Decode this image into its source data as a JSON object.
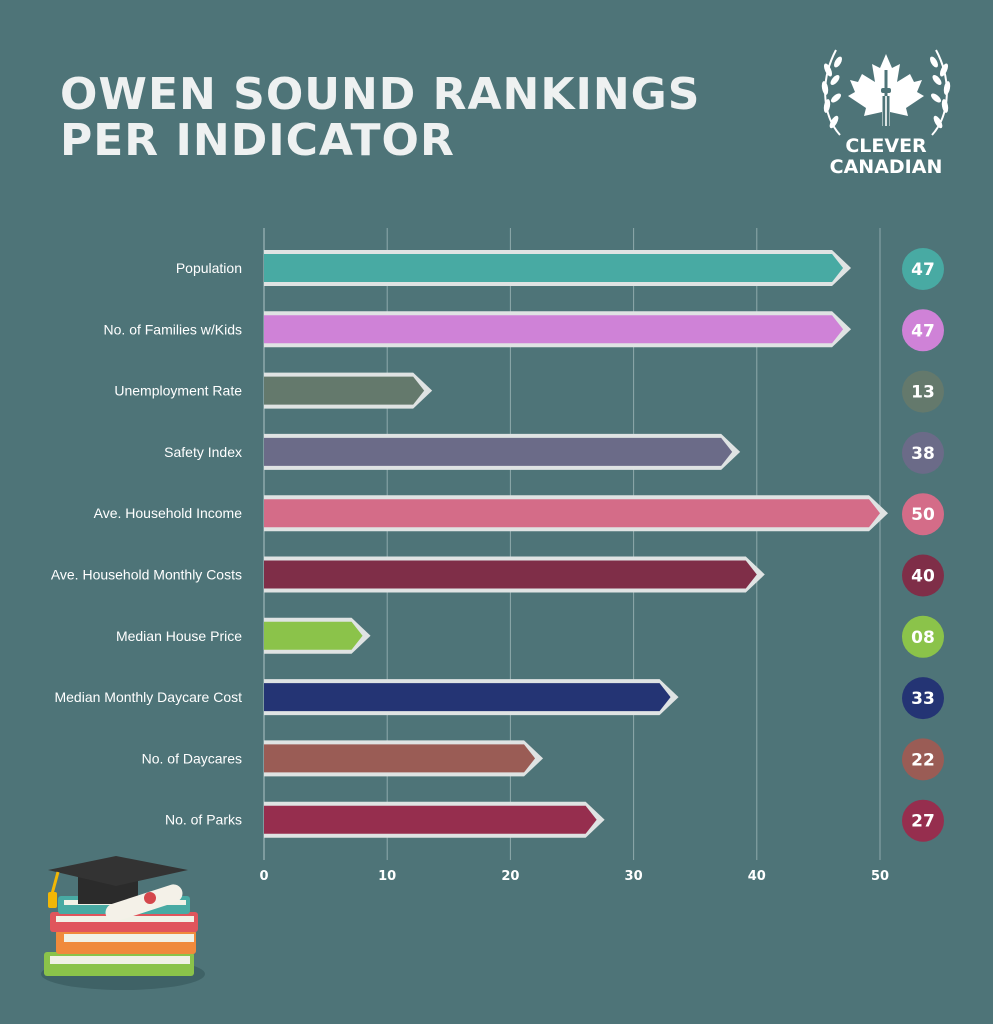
{
  "header": {
    "title_line1": "OWEN SOUND RANKINGS",
    "title_line2": "PER INDICATOR"
  },
  "logo": {
    "line1": "CLEVER",
    "line2": "CANADIAN",
    "icon": "maple-leaf-cn-tower-laurel-icon"
  },
  "decoration": {
    "icon": "books-graduation-cap-diploma-icon"
  },
  "colors": {
    "background": "#4e7478",
    "bar_outline": "#dfe3e3",
    "gridline": "#9fb7b9"
  },
  "chart_data": {
    "type": "bar",
    "orientation": "horizontal",
    "categories": [
      "Population",
      "No. of Families w/Kids",
      "Unemployment Rate",
      "Safety Index",
      "Ave. Household Income",
      "Ave. Household Monthly Costs",
      "Median House Price",
      "Median Monthly Daycare Cost",
      "No. of Daycares",
      "No. of Parks"
    ],
    "values": [
      47,
      47,
      13,
      38,
      50,
      40,
      8,
      33,
      22,
      27
    ],
    "value_labels": [
      "47",
      "47",
      "13",
      "38",
      "50",
      "40",
      "08",
      "33",
      "22",
      "27"
    ],
    "bar_colors": [
      "#48aaa3",
      "#cf82d7",
      "#64796c",
      "#6b6b88",
      "#d46c88",
      "#7f2e48",
      "#8bc34a",
      "#243474",
      "#9a5c55",
      "#962e4e"
    ],
    "xlim": [
      0,
      50
    ],
    "xticks": [
      "0",
      "10",
      "20",
      "30",
      "40",
      "50"
    ],
    "grid": true,
    "title": "OWEN SOUND RANKINGS PER INDICATOR",
    "xlabel": "",
    "ylabel": ""
  }
}
